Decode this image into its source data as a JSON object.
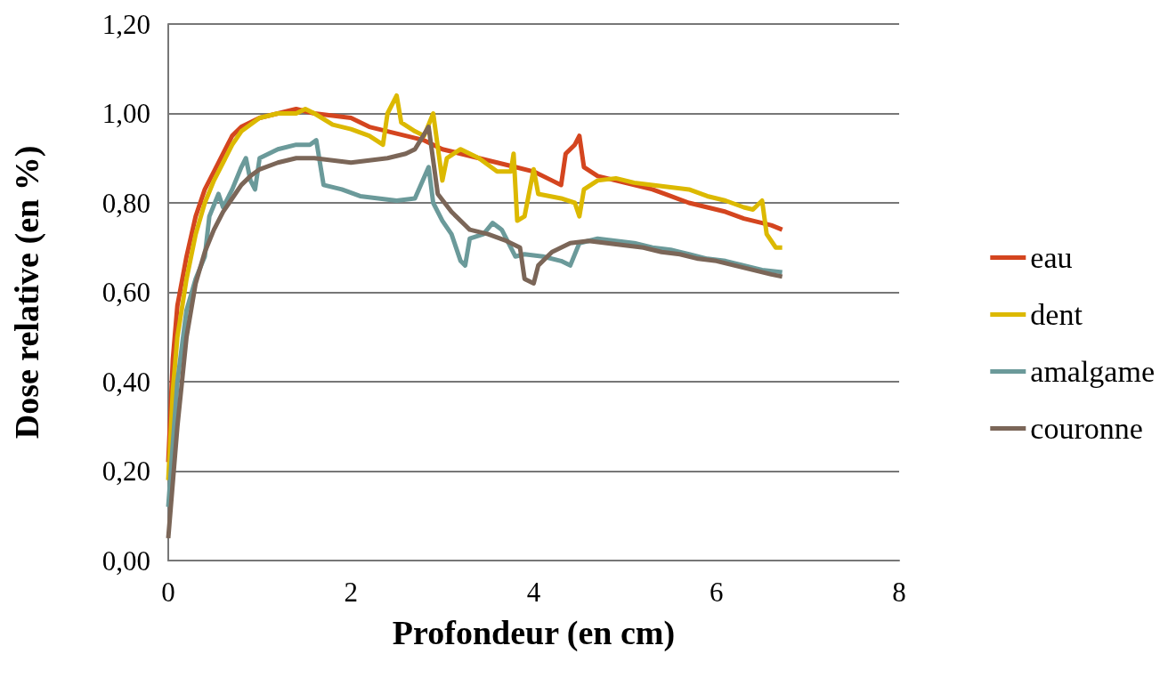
{
  "chart_data": {
    "type": "line",
    "xlabel": "Profondeur (en cm)",
    "ylabel": "Dose relative (en %)",
    "xlim": [
      0,
      8
    ],
    "xticks": [
      0,
      2,
      4,
      6,
      8
    ],
    "ylim": [
      0,
      1.2
    ],
    "yticks": [
      {
        "value": 0,
        "label": "0,00"
      },
      {
        "value": 0.2,
        "label": "0,20"
      },
      {
        "value": 0.4,
        "label": "0,40"
      },
      {
        "value": 0.6,
        "label": "0,60"
      },
      {
        "value": 0.8,
        "label": "0,80"
      },
      {
        "value": 1,
        "label": "1,00"
      },
      {
        "value": 1.2,
        "label": "1,20"
      }
    ],
    "grid": "y",
    "legend": "right",
    "marker": "none",
    "line_style": "solid",
    "series": [
      {
        "name": "eau",
        "color": "#d4451f",
        "x": [
          0,
          0.05,
          0.1,
          0.2,
          0.3,
          0.4,
          0.5,
          0.6,
          0.7,
          0.8,
          1,
          1.2,
          1.4,
          1.6,
          1.8,
          2,
          2.2,
          2.4,
          2.6,
          2.8,
          3,
          3.2,
          3.4,
          3.6,
          3.8,
          4,
          4.2,
          4.3,
          4.35,
          4.45,
          4.5,
          4.55,
          4.7,
          4.9,
          5.1,
          5.3,
          5.5,
          5.7,
          5.9,
          6.1,
          6.3,
          6.5,
          6.6,
          6.72
        ],
        "values": [
          0.22,
          0.45,
          0.57,
          0.68,
          0.77,
          0.83,
          0.87,
          0.91,
          0.95,
          0.97,
          0.99,
          1,
          1.01,
          1,
          0.995,
          0.99,
          0.97,
          0.96,
          0.95,
          0.94,
          0.92,
          0.91,
          0.9,
          0.89,
          0.88,
          0.87,
          0.85,
          0.84,
          0.91,
          0.93,
          0.95,
          0.88,
          0.86,
          0.85,
          0.84,
          0.83,
          0.815,
          0.8,
          0.79,
          0.78,
          0.765,
          0.755,
          0.75,
          0.74
        ]
      },
      {
        "name": "dent",
        "color": "#dcb900",
        "x": [
          0,
          0.05,
          0.1,
          0.2,
          0.3,
          0.4,
          0.5,
          0.6,
          0.7,
          0.8,
          1,
          1.2,
          1.4,
          1.5,
          1.6,
          1.8,
          2,
          2.2,
          2.35,
          2.4,
          2.5,
          2.55,
          2.7,
          2.8,
          2.9,
          3,
          3.05,
          3.2,
          3.4,
          3.6,
          3.75,
          3.78,
          3.82,
          3.9,
          4,
          4.05,
          4.3,
          4.45,
          4.5,
          4.55,
          4.7,
          4.9,
          5.1,
          5.3,
          5.5,
          5.7,
          5.9,
          6.1,
          6.3,
          6.4,
          6.5,
          6.55,
          6.65,
          6.72
        ],
        "values": [
          0.18,
          0.38,
          0.5,
          0.63,
          0.73,
          0.8,
          0.85,
          0.89,
          0.93,
          0.96,
          0.99,
          1,
          1,
          1.01,
          1,
          0.975,
          0.965,
          0.95,
          0.93,
          1,
          1.04,
          0.98,
          0.96,
          0.95,
          1,
          0.85,
          0.9,
          0.92,
          0.9,
          0.87,
          0.87,
          0.91,
          0.76,
          0.77,
          0.875,
          0.82,
          0.81,
          0.8,
          0.77,
          0.83,
          0.85,
          0.855,
          0.845,
          0.84,
          0.835,
          0.83,
          0.815,
          0.805,
          0.79,
          0.785,
          0.805,
          0.73,
          0.7,
          0.7
        ]
      },
      {
        "name": "amalgame",
        "color": "#6b9a9a",
        "x": [
          0,
          0.1,
          0.2,
          0.3,
          0.4,
          0.45,
          0.55,
          0.6,
          0.7,
          0.8,
          0.85,
          0.9,
          0.95,
          1,
          1.2,
          1.4,
          1.55,
          1.62,
          1.7,
          1.9,
          2.1,
          2.3,
          2.5,
          2.7,
          2.85,
          2.9,
          3,
          3.1,
          3.2,
          3.25,
          3.3,
          3.45,
          3.55,
          3.65,
          3.7,
          3.8,
          3.9,
          4.1,
          4.3,
          4.4,
          4.5,
          4.7,
          4.9,
          5.1,
          5.3,
          5.5,
          5.7,
          5.9,
          6.1,
          6.3,
          6.5,
          6.72
        ],
        "values": [
          0.12,
          0.4,
          0.56,
          0.63,
          0.68,
          0.77,
          0.82,
          0.79,
          0.83,
          0.88,
          0.9,
          0.85,
          0.83,
          0.9,
          0.92,
          0.93,
          0.93,
          0.94,
          0.84,
          0.83,
          0.815,
          0.81,
          0.805,
          0.81,
          0.88,
          0.8,
          0.76,
          0.73,
          0.67,
          0.66,
          0.72,
          0.73,
          0.755,
          0.74,
          0.72,
          0.68,
          0.685,
          0.68,
          0.67,
          0.66,
          0.71,
          0.72,
          0.715,
          0.71,
          0.7,
          0.695,
          0.685,
          0.675,
          0.67,
          0.66,
          0.65,
          0.645
        ]
      },
      {
        "name": "couronne",
        "color": "#7b6658",
        "x": [
          0,
          0.1,
          0.2,
          0.3,
          0.4,
          0.5,
          0.6,
          0.7,
          0.8,
          0.9,
          1,
          1.2,
          1.4,
          1.6,
          1.8,
          2,
          2.2,
          2.4,
          2.6,
          2.7,
          2.85,
          2.95,
          3.1,
          3.3,
          3.5,
          3.7,
          3.85,
          3.9,
          4,
          4.05,
          4.2,
          4.4,
          4.6,
          4.8,
          5,
          5.2,
          5.4,
          5.6,
          5.8,
          6,
          6.2,
          6.4,
          6.6,
          6.72
        ],
        "values": [
          0.05,
          0.3,
          0.5,
          0.62,
          0.69,
          0.74,
          0.78,
          0.81,
          0.84,
          0.86,
          0.875,
          0.89,
          0.9,
          0.9,
          0.895,
          0.89,
          0.895,
          0.9,
          0.91,
          0.92,
          0.97,
          0.82,
          0.78,
          0.74,
          0.73,
          0.715,
          0.7,
          0.63,
          0.62,
          0.66,
          0.69,
          0.71,
          0.715,
          0.71,
          0.705,
          0.7,
          0.69,
          0.685,
          0.675,
          0.67,
          0.66,
          0.65,
          0.64,
          0.635
        ]
      }
    ]
  }
}
